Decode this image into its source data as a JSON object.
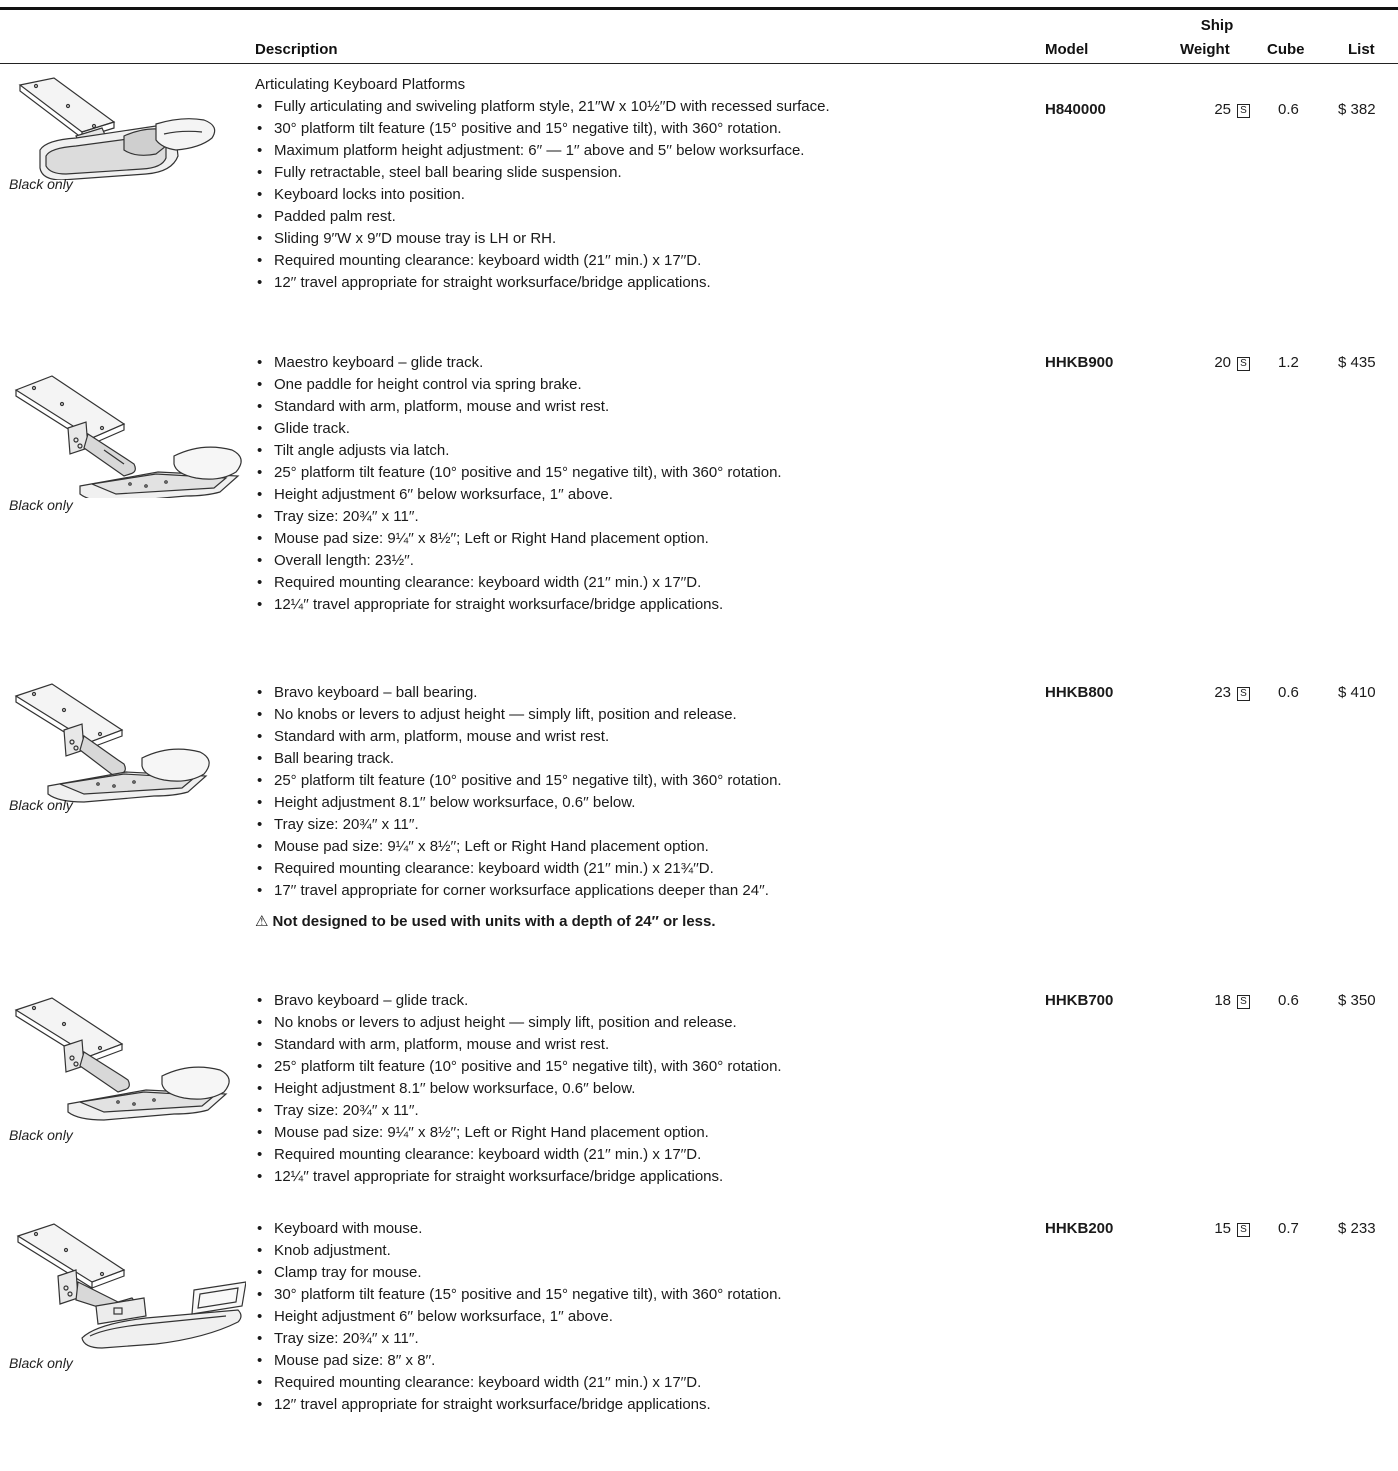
{
  "header": {
    "description": "Description",
    "model": "Model",
    "ship": "Ship",
    "weight": "Weight",
    "cube": "Cube",
    "list": "List"
  },
  "shipping_code": "S",
  "products": [
    {
      "title": "Articulating Keyboard Platforms",
      "caption": "Black only",
      "image": "keyboard-platform-icon",
      "model": "H840000",
      "weight": "25",
      "cube": "0.6",
      "list": "$ 382",
      "bullets": [
        "Fully articulating and swiveling platform style, 21′′W x 10½′′D with recessed surface.",
        "30° platform tilt feature (15° positive and 15° negative tilt), with 360° rotation.",
        "Maximum platform height adjustment: 6′′ — 1′′ above and 5′′ below worksurface.",
        "Fully retractable, steel ball bearing slide suspension.",
        "Keyboard locks into position.",
        "Padded palm rest.",
        "Sliding 9′′W x 9′′D mouse tray is LH or RH.",
        "Required mounting clearance: keyboard width (21′′ min.) x 17′′D.",
        "12′′ travel appropriate for straight worksurface/bridge applications."
      ]
    },
    {
      "caption": "Black only",
      "image": "keyboard-arm-mouse-tray-icon",
      "model": "HHKB900",
      "weight": "20",
      "cube": "1.2",
      "list": "$ 435",
      "bullets": [
        "Maestro keyboard – glide track.",
        "One paddle for height control via spring brake.",
        "Standard with arm, platform, mouse and wrist rest.",
        "Glide track.",
        "Tilt angle adjusts via latch.",
        "25° platform tilt feature (10° positive and 15° negative tilt), with 360° rotation.",
        "Height adjustment 6′′ below worksurface, 1′′ above.",
        "Tray size: 20¾′′ x 11′′.",
        "Mouse pad size: 9¼′′ x 8½′′; Left or Right Hand placement option.",
        "Overall length: 23½′′.",
        "Required mounting clearance: keyboard width (21′′ min.) x 17′′D.",
        "12¼′′ travel appropriate for straight worksurface/bridge applications."
      ]
    },
    {
      "caption": "Black only",
      "image": "keyboard-arm-mouse-tray-icon",
      "model": "HHKB800",
      "weight": "23",
      "cube": "0.6",
      "list": "$ 410",
      "bullets": [
        "Bravo keyboard – ball bearing.",
        "No knobs or levers to adjust height — simply lift, position and release.",
        "Standard with arm, platform, mouse and wrist rest.",
        "Ball bearing track.",
        "25° platform tilt feature (10° positive and 15° negative tilt), with 360° rotation.",
        "Height adjustment 8.1′′ below worksurface, 0.6′′ below.",
        "Tray size: 20¾′′ x 11′′.",
        "Mouse pad size: 9¼′′ x 8½′′; Left or Right Hand placement option.",
        "Required mounting clearance: keyboard width (21′′ min.) x 21¾′′D.",
        "17′′ travel appropriate for corner worksurface applications deeper than 24′′."
      ],
      "warning_icon": "⚠",
      "warning": "Not designed to be used with units with a depth of 24′′ or less."
    },
    {
      "caption": "Black only",
      "image": "keyboard-arm-mouse-tray-icon",
      "model": "HHKB700",
      "weight": "18",
      "cube": "0.6",
      "list": "$ 350",
      "bullets": [
        "Bravo keyboard – glide track.",
        "No knobs or levers to adjust height — simply lift, position and release.",
        "Standard with arm, platform, mouse and wrist rest.",
        "25° platform tilt feature (10° positive and 15° negative tilt), with 360° rotation.",
        "Height adjustment 8.1′′ below worksurface, 0.6′′ below.",
        "Tray size: 20¾′′ x 11′′.",
        "Mouse pad size: 9¼′′ x 8½′′; Left or Right Hand placement option.",
        "Required mounting clearance: keyboard width (21′′ min.) x 17′′D.",
        "12¼′′ travel appropriate for straight worksurface/bridge applications."
      ]
    },
    {
      "caption": "Black only",
      "image": "keyboard-arm-clamp-tray-icon",
      "model": "HHKB200",
      "weight": "15",
      "cube": "0.7",
      "list": "$ 233",
      "bullets": [
        "Keyboard with mouse.",
        "Knob adjustment.",
        "Clamp tray for mouse.",
        "30° platform tilt feature (15° positive and 15° negative tilt), with 360° rotation.",
        "Height adjustment 6′′ below worksurface, 1′′ above.",
        "Tray size: 20¾′′ x 11′′.",
        "Mouse pad size: 8′′ x 8′′.",
        "Required mounting clearance: keyboard width (21′′ min.) x 17′′D.",
        "12′′ travel appropriate for straight worksurface/bridge applications."
      ]
    }
  ]
}
